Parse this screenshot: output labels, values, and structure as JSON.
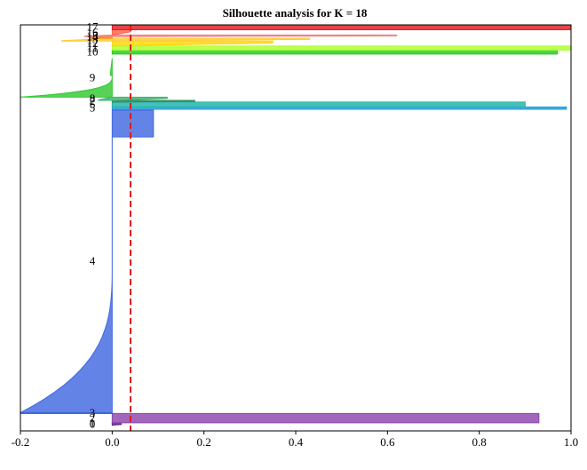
{
  "chart_data": {
    "type": "silhouette",
    "title": "Silhouette analysis for K = 18",
    "xlabel": "",
    "ylabel": "",
    "xlim": [
      -0.2,
      1.0
    ],
    "ylim": [
      0,
      100
    ],
    "xticks": [
      "-0.2",
      "0.0",
      "0.2",
      "0.4",
      "0.6",
      "0.8",
      "1.0"
    ],
    "average_silhouette": 0.04,
    "average_line_color": "#e31a1c",
    "grid": false,
    "clusters": [
      {
        "label": "0",
        "y0": 98.2,
        "y1": 98.6,
        "color": "#5e2a84",
        "max": 0.02,
        "min": 0.0,
        "shape": "flat"
      },
      {
        "label": "1",
        "y0": 98.0,
        "y1": 98.2,
        "color": "#6a3d9a",
        "max": 0.01,
        "min": 0.0,
        "shape": "flat"
      },
      {
        "label": "2",
        "y0": 95.7,
        "y1": 98.0,
        "color": "#8e44ad",
        "max": 0.93,
        "min": 0.0,
        "shape": "block"
      },
      {
        "label": "3",
        "y0": 95.5,
        "y1": 95.7,
        "color": "#3a4bc8",
        "max": 0.0,
        "min": -0.2,
        "shape": "flat"
      },
      {
        "label": "4",
        "y0": 21.0,
        "y1": 95.5,
        "color": "#4169e1",
        "max": 0.09,
        "min": -0.2,
        "shape": "tail",
        "blockEnd": 27.6
      },
      {
        "label": "5",
        "y0": 20.2,
        "y1": 20.8,
        "color": "#1e9ed6",
        "max": 0.99,
        "min": 0.0,
        "shape": "block"
      },
      {
        "label": "6",
        "y0": 19.0,
        "y1": 20.2,
        "color": "#20b2aa",
        "max": 0.9,
        "min": 0.0,
        "shape": "block"
      },
      {
        "label": "7",
        "y0": 18.6,
        "y1": 19.0,
        "color": "#2e8b57",
        "max": 0.18,
        "min": 0.0,
        "shape": "flat"
      },
      {
        "label": "8",
        "y0": 17.8,
        "y1": 18.6,
        "color": "#3cb371",
        "max": 0.12,
        "min": -0.03,
        "shape": "flat"
      },
      {
        "label": "9",
        "y0": 8.3,
        "y1": 17.8,
        "color": "#32c832",
        "max": 0.0,
        "min": -0.2,
        "shape": "tail"
      },
      {
        "label": "10",
        "y0": 6.2,
        "y1": 7.2,
        "color": "#22cc22",
        "max": 0.97,
        "min": 0.0,
        "shape": "block"
      },
      {
        "label": "11",
        "y0": 5.2,
        "y1": 6.2,
        "color": "#adff2f",
        "max": 1.0,
        "min": 0.0,
        "shape": "block"
      },
      {
        "label": "12",
        "y0": 4.0,
        "y1": 5.2,
        "color": "#ffd700",
        "max": 0.35,
        "min": 0.0,
        "shape": "flat"
      },
      {
        "label": "13",
        "y0": 3.3,
        "y1": 4.0,
        "color": "#ffcc33",
        "max": 0.43,
        "min": -0.11,
        "shape": "flat"
      },
      {
        "label": "14",
        "y0": 2.9,
        "y1": 3.3,
        "color": "#ff8c00",
        "max": 0.0,
        "min": -0.05,
        "shape": "flat"
      },
      {
        "label": "15",
        "y0": 2.5,
        "y1": 2.9,
        "color": "#f08080",
        "max": 0.62,
        "min": -0.06,
        "shape": "flat"
      },
      {
        "label": "16",
        "y0": 1.2,
        "y1": 2.5,
        "color": "#ff6347",
        "max": 0.04,
        "min": 0.0,
        "shape": "flat"
      },
      {
        "label": "17",
        "y0": 0.0,
        "y1": 1.2,
        "color": "#e31a1c",
        "max": 1.0,
        "min": 0.0,
        "shape": "block"
      }
    ]
  }
}
